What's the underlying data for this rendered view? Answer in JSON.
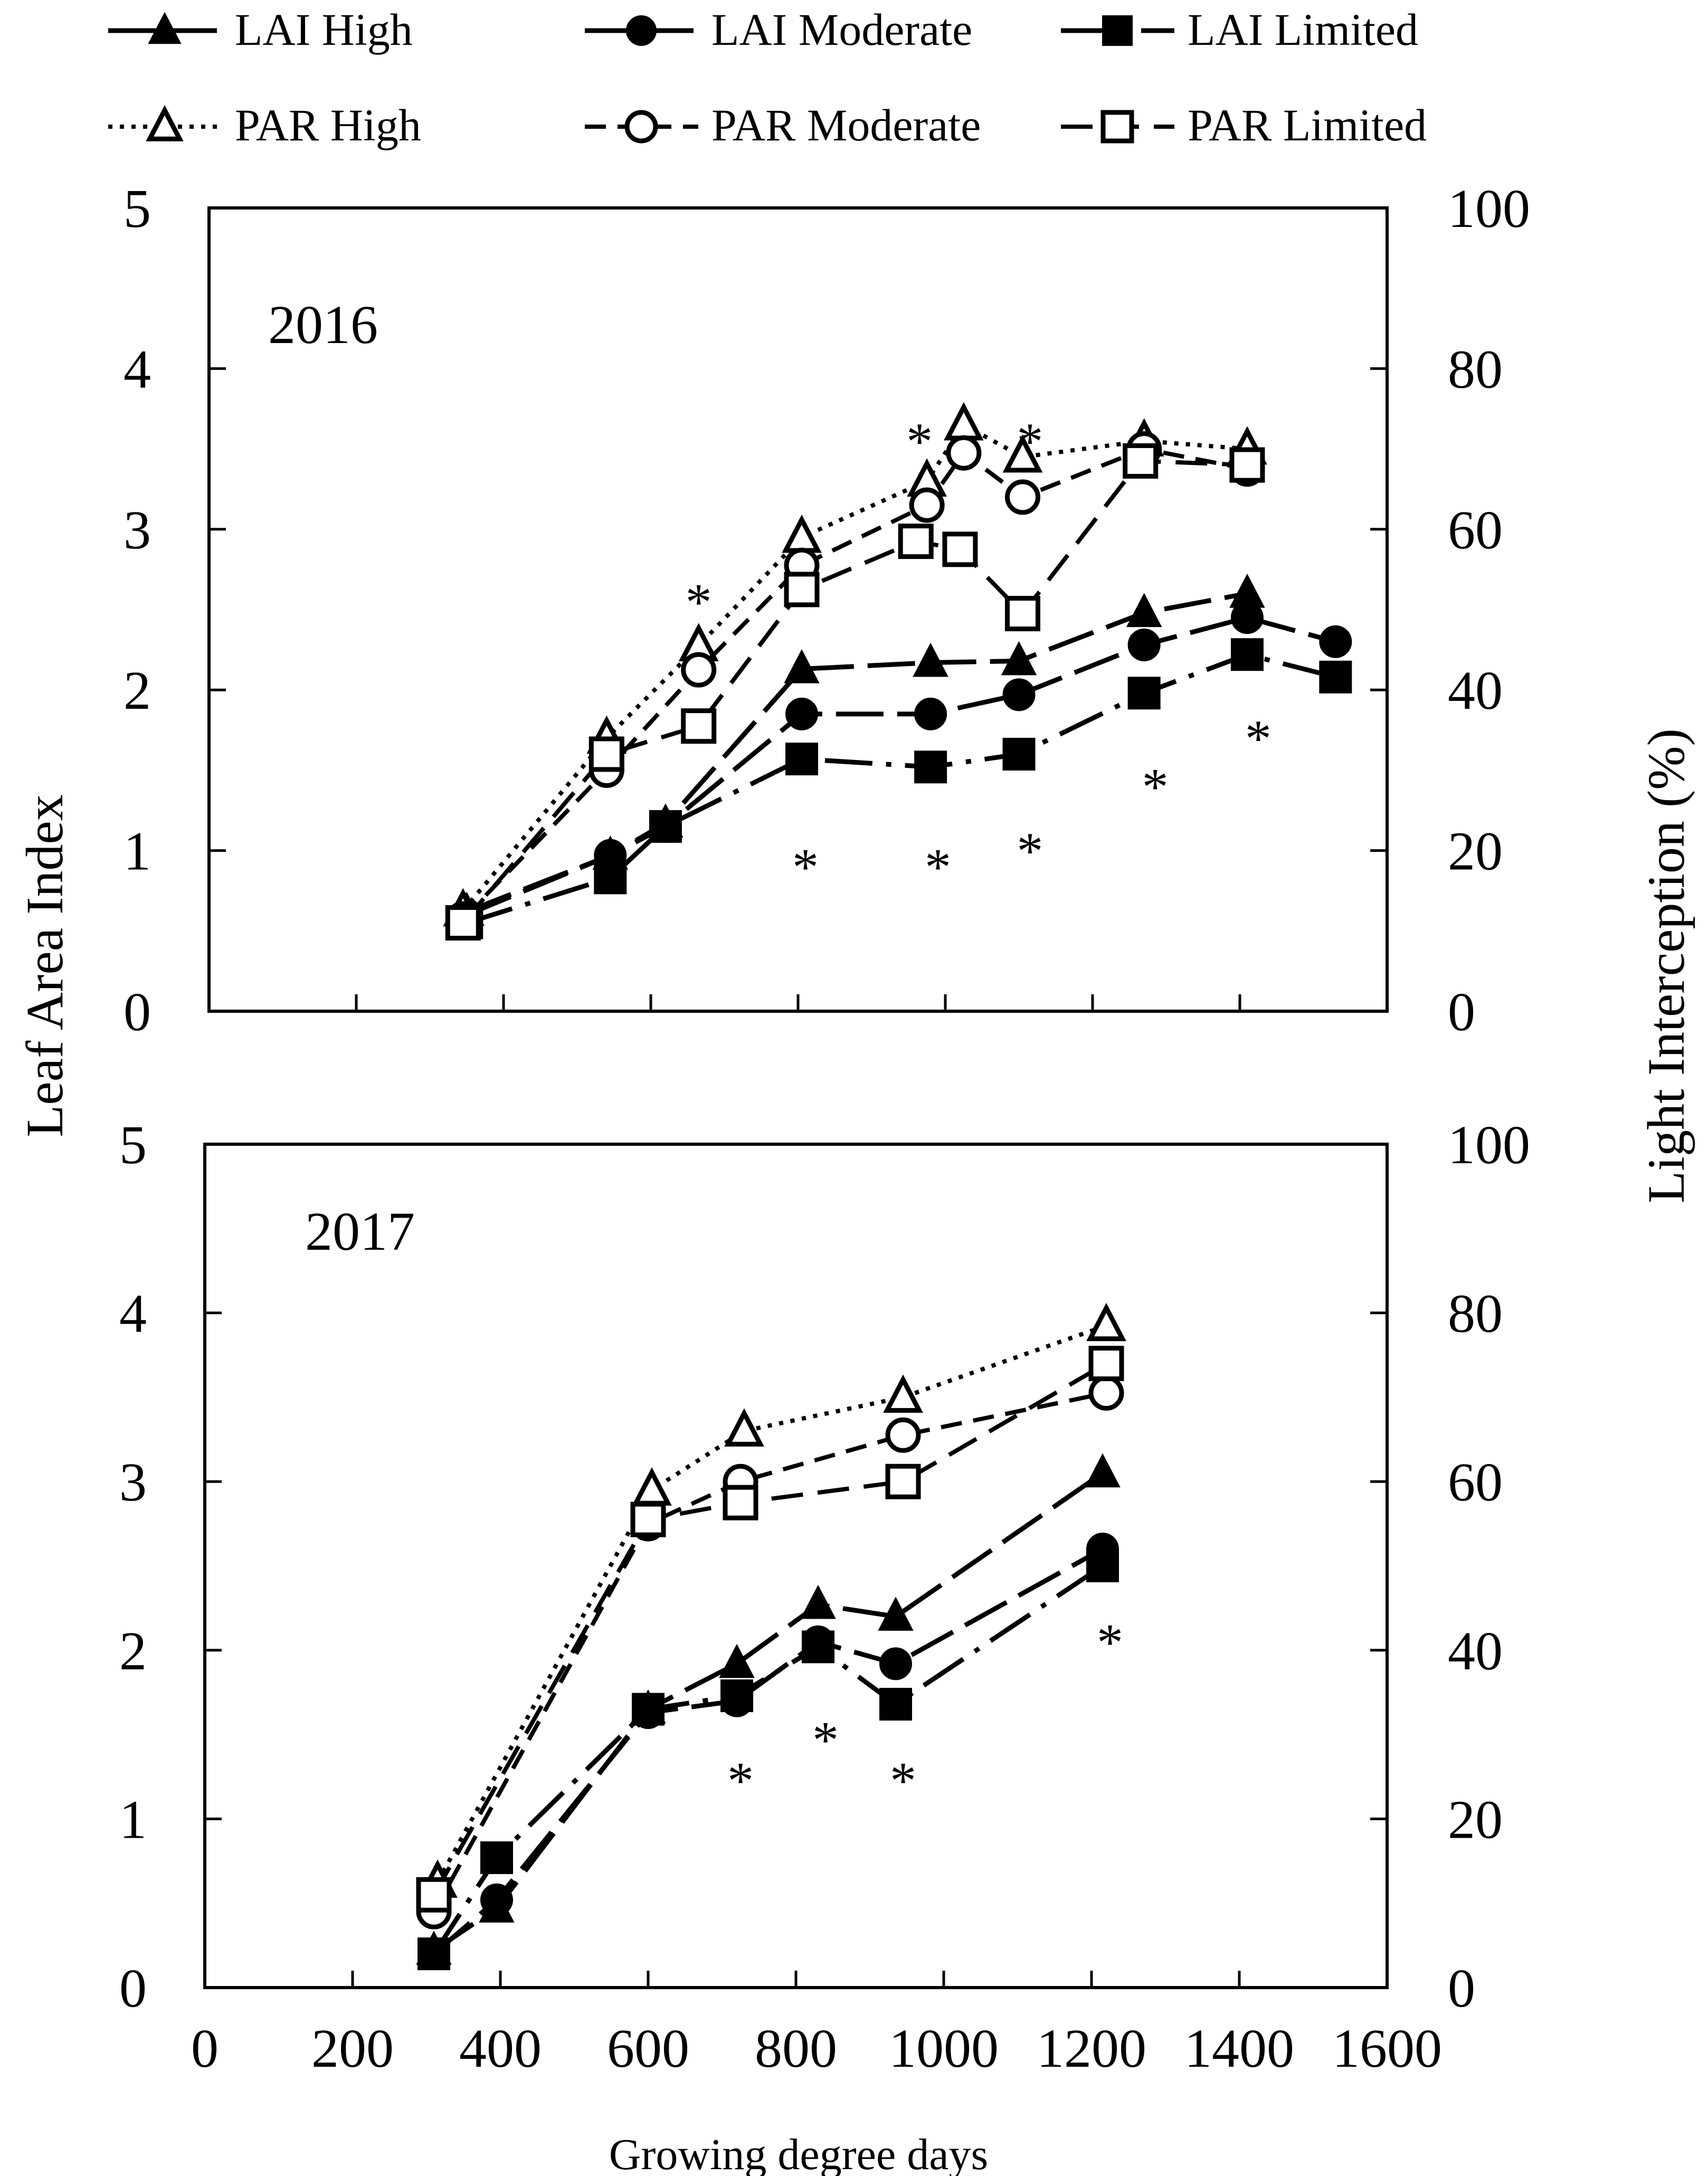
{
  "chart_data": {
    "type": "line",
    "xlabel": "Growing degree days",
    "ylabel_left": "Leaf Area Index",
    "ylabel_right": "Light Interception (%)",
    "xlim": [
      0,
      1600
    ],
    "x_ticks": [
      "0",
      "200",
      "400",
      "600",
      "800",
      "1000",
      "1200",
      "1400",
      "1600"
    ],
    "y_left_lim": [
      0,
      5
    ],
    "y_left_ticks": [
      "0",
      "1",
      "2",
      "3",
      "4",
      "5"
    ],
    "y_right_lim": [
      0,
      100
    ],
    "y_right_ticks": [
      "0",
      "20",
      "40",
      "60",
      "80",
      "100"
    ],
    "legend": {
      "placement": "top",
      "entries": [
        {
          "key": "lai_high",
          "label": "LAI High"
        },
        {
          "key": "lai_moderate",
          "label": "LAI Moderate"
        },
        {
          "key": "lai_limited",
          "label": "LAI Limited"
        },
        {
          "key": "par_high",
          "label": "PAR High"
        },
        {
          "key": "par_moderate",
          "label": "PAR Moderate"
        },
        {
          "key": "par_limited",
          "label": "PAR Limited"
        }
      ]
    },
    "panels": [
      {
        "year": "2016",
        "series": [
          {
            "key": "lai_high",
            "name": "LAI High",
            "axis": "left",
            "x": [
              350,
              545,
              620,
              805,
              980,
              1100,
              1270,
              1410
            ],
            "y": [
              0.62,
              0.97,
              1.17,
              2.13,
              2.17,
              2.18,
              2.48,
              2.6
            ]
          },
          {
            "key": "lai_moderate",
            "name": "LAI Moderate",
            "axis": "left",
            "x": [
              350,
              545,
              620,
              805,
              980,
              1100,
              1270,
              1410,
              1530
            ],
            "y": [
              0.6,
              0.97,
              1.15,
              1.85,
              1.85,
              1.97,
              2.28,
              2.45,
              2.3
            ]
          },
          {
            "key": "lai_limited",
            "name": "LAI Limited",
            "axis": "left",
            "x": [
              350,
              545,
              620,
              805,
              980,
              1100,
              1270,
              1410,
              1530
            ],
            "y": [
              0.55,
              0.83,
              1.15,
              1.57,
              1.52,
              1.6,
              1.98,
              2.22,
              2.08
            ]
          },
          {
            "key": "par_high",
            "name": "PAR High",
            "axis": "right",
            "x": [
              345,
              540,
              665,
              805,
              975,
              1025,
              1105,
              1270,
              1410
            ],
            "y": [
              12.5,
              34,
              45.5,
              59,
              66,
              73,
              69,
              71,
              70
            ]
          },
          {
            "key": "par_moderate",
            "name": "PAR Moderate",
            "axis": "right",
            "x": [
              345,
              540,
              665,
              805,
              975,
              1025,
              1105,
              1270,
              1410
            ],
            "y": [
              11.5,
              30,
              42.5,
              55.5,
              63,
              69.5,
              64,
              70,
              67.5
            ]
          },
          {
            "key": "par_limited",
            "name": "PAR Limited",
            "axis": "right",
            "x": [
              345,
              540,
              665,
              805,
              960,
              1020,
              1105,
              1265,
              1410
            ],
            "y": [
              11,
              32,
              35.5,
              52.5,
              58.5,
              57.5,
              49.5,
              68.5,
              68
            ]
          }
        ],
        "significance": [
          {
            "x": 665,
            "axis": "right",
            "y": 51,
            "label": "*"
          },
          {
            "x": 965,
            "axis": "right",
            "y": 71,
            "label": "*"
          },
          {
            "x": 1115,
            "axis": "right",
            "y": 71,
            "label": "*"
          },
          {
            "x": 810,
            "axis": "left",
            "y": 0.9,
            "label": "*"
          },
          {
            "x": 990,
            "axis": "left",
            "y": 0.9,
            "label": "*"
          },
          {
            "x": 1115,
            "axis": "left",
            "y": 1.0,
            "label": "*"
          },
          {
            "x": 1285,
            "axis": "left",
            "y": 1.4,
            "label": "*"
          },
          {
            "x": 1425,
            "axis": "left",
            "y": 1.7,
            "label": "*"
          }
        ]
      },
      {
        "year": "2017",
        "series": [
          {
            "key": "lai_high",
            "name": "LAI High",
            "axis": "left",
            "x": [
              310,
              395,
              600,
              720,
              830,
              935,
              1215
            ],
            "y": [
              0.22,
              0.47,
              1.65,
              1.92,
              2.27,
              2.2,
              3.05
            ]
          },
          {
            "key": "lai_moderate",
            "name": "LAI Moderate",
            "axis": "left",
            "x": [
              310,
              395,
              600,
              720,
              830,
              935,
              1215
            ],
            "y": [
              0.2,
              0.52,
              1.63,
              1.7,
              2.05,
              1.92,
              2.6
            ]
          },
          {
            "key": "lai_limited",
            "name": "LAI Limited",
            "axis": "left",
            "x": [
              310,
              395,
              600,
              720,
              830,
              935,
              1215
            ],
            "y": [
              0.2,
              0.77,
              1.65,
              1.73,
              2.02,
              1.68,
              2.5
            ]
          },
          {
            "key": "par_high",
            "name": "PAR High",
            "axis": "right",
            "x": [
              315,
              605,
              730,
              945,
              1220
            ],
            "y": [
              12.5,
              59,
              66,
              70,
              78.5
            ]
          },
          {
            "key": "par_moderate",
            "name": "PAR Moderate",
            "axis": "right",
            "x": [
              310,
              600,
              725,
              945,
              1220
            ],
            "y": [
              9,
              55,
              60,
              65.5,
              70.5
            ]
          },
          {
            "key": "par_limited",
            "name": "PAR Limited",
            "axis": "right",
            "x": [
              310,
              600,
              725,
              945,
              1220
            ],
            "y": [
              11,
              55.5,
              57.5,
              60,
              74
            ]
          }
        ],
        "significance": [
          {
            "x": 725,
            "axis": "left",
            "y": 1.23,
            "label": "*"
          },
          {
            "x": 840,
            "axis": "left",
            "y": 1.47,
            "label": "*"
          },
          {
            "x": 945,
            "axis": "left",
            "y": 1.23,
            "label": "*"
          },
          {
            "x": 1225,
            "axis": "left",
            "y": 2.05,
            "label": "*"
          }
        ]
      }
    ]
  }
}
